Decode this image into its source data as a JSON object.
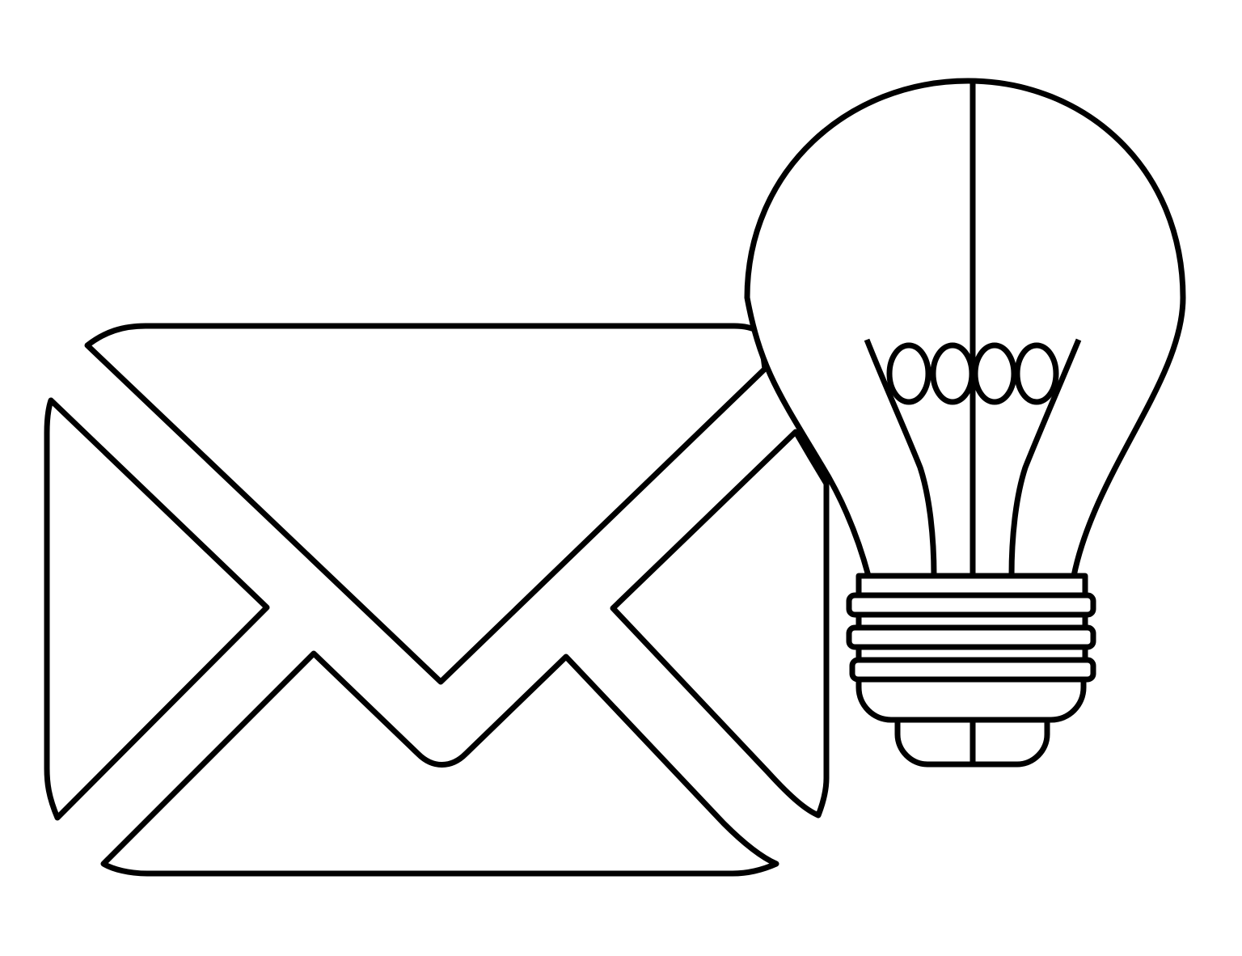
{
  "illustration": {
    "elements": [
      "envelope-icon",
      "lightbulb-icon"
    ],
    "stroke_color": "#000000",
    "fill_color": "#ffffff",
    "background_color": "#ffffff"
  }
}
